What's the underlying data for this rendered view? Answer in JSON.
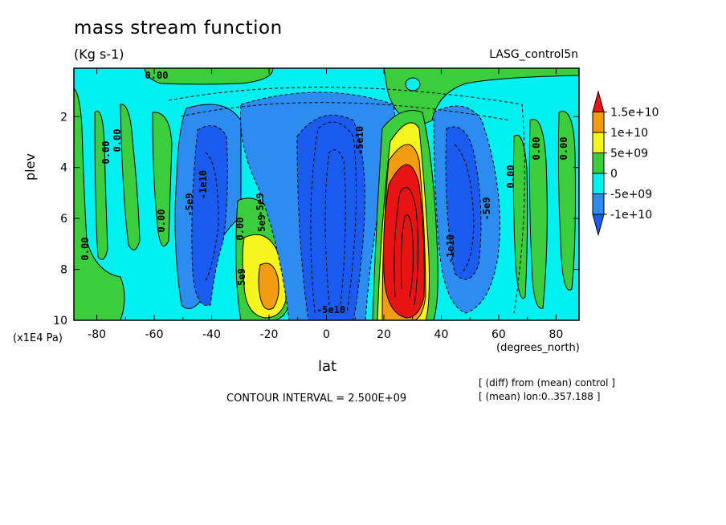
{
  "chart_data": {
    "type": "heatmap",
    "title": "mass stream function",
    "units": "(Kg s-1)",
    "dataset": "LASG_control5n",
    "xlabel": "lat",
    "xunits": "(degrees_north)",
    "ylabel": "plev",
    "yunits": "(x1E4 Pa)",
    "xlim": [
      -88,
      88
    ],
    "ylim": [
      10,
      0.1
    ],
    "xticks": [
      "-80",
      "-60",
      "-40",
      "-20",
      "0",
      "20",
      "40",
      "60",
      "80"
    ],
    "yticks": [
      "2",
      "4",
      "6",
      "8",
      "10"
    ],
    "contour_interval": "CONTOUR INTERVAL = 2.500E+09",
    "notes": [
      "[ (diff) from (mean) control ]",
      "[ (mean) lon:0..357.188 ]"
    ],
    "colorbar": {
      "labels": [
        "1.5e+10",
        "1e+10",
        "5e+09",
        "0",
        "-5e+09",
        "-1e+10"
      ],
      "colors": [
        "#e81414",
        "#f39c12",
        "#f5f51e",
        "#3ccd3c",
        "#00f0f0",
        "#2c8cf0",
        "#1a5cf0"
      ]
    },
    "contour_labels": [
      "0.00",
      "0.00",
      "0.00",
      "0.00",
      "0.00",
      "0.00",
      "0.00",
      "0.00",
      "0.00",
      "-5e9",
      "-1e10",
      "-5e9",
      "5e9",
      "5e9",
      "-5e10",
      "-5e10",
      "-5e9",
      "-1e10"
    ],
    "cells": [
      {
        "lat": -85,
        "plev": 5.5,
        "value": 0
      },
      {
        "lat": -72,
        "plev": 5.5,
        "value": 0
      },
      {
        "lat": -42,
        "plev": 6,
        "value": -7500000000.0
      },
      {
        "lat": -22,
        "plev": 8.5,
        "value": 10000000000.0
      },
      {
        "lat": 0,
        "plev": 5.5,
        "value": -12000000000.0
      },
      {
        "lat": 28,
        "plev": 7,
        "value": 15000000000.0
      },
      {
        "lat": 48,
        "plev": 6,
        "value": -7500000000.0
      },
      {
        "lat": 67,
        "plev": 5.5,
        "value": 0
      },
      {
        "lat": 78,
        "plev": 5.5,
        "value": 0
      }
    ]
  }
}
